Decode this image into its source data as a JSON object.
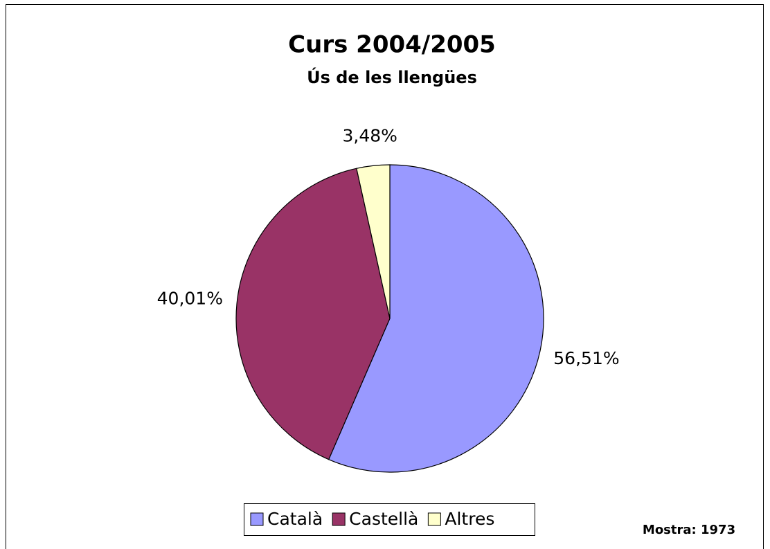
{
  "chart_data": {
    "type": "pie",
    "title": "Curs 2004/2005",
    "subtitle": "Ús de les llengües",
    "categories": [
      "Català",
      "Castellà",
      "Altres"
    ],
    "values": [
      56.51,
      40.01,
      3.48
    ],
    "value_labels": [
      "56,51%",
      "40,01%",
      "3,48%"
    ],
    "colors": [
      "#9999ff",
      "#993366",
      "#ffffcc"
    ],
    "annotation": "Mostra: 1973"
  }
}
